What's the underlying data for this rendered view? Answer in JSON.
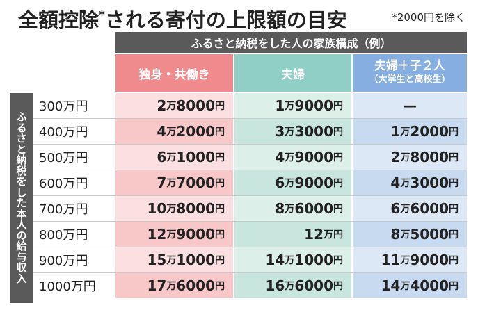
{
  "title": "全額控除",
  "title_mark": "*",
  "title_rest": "される寄付の上限額の目安",
  "note": "*2000円を除く",
  "group_header": "ふるさと納税をした人の家族構成（例）",
  "columns": [
    {
      "label": "独身・共働き",
      "sub": ""
    },
    {
      "label": "夫婦",
      "sub": ""
    },
    {
      "label": "夫婦＋子２人",
      "sub": "（大学生と高校生）"
    }
  ],
  "side_label": "ふるさと納税をした本人の給与収入",
  "rows": [
    {
      "income": "300万円",
      "cells": [
        [
          "2",
          "万",
          "8000",
          "円"
        ],
        [
          "1",
          "万",
          "9000",
          "円"
        ],
        [
          "—",
          "",
          "",
          ""
        ]
      ]
    },
    {
      "income": "400万円",
      "cells": [
        [
          "4",
          "万",
          "2000",
          "円"
        ],
        [
          "3",
          "万",
          "3000",
          "円"
        ],
        [
          "1",
          "万",
          "2000",
          "円"
        ]
      ]
    },
    {
      "income": "500万円",
      "cells": [
        [
          "6",
          "万",
          "1000",
          "円"
        ],
        [
          "4",
          "万",
          "9000",
          "円"
        ],
        [
          "2",
          "万",
          "8000",
          "円"
        ]
      ]
    },
    {
      "income": "600万円",
      "cells": [
        [
          "7",
          "万",
          "7000",
          "円"
        ],
        [
          "6",
          "万",
          "9000",
          "円"
        ],
        [
          "4",
          "万",
          "3000",
          "円"
        ]
      ]
    },
    {
      "income": "700万円",
      "cells": [
        [
          "10",
          "万",
          "8000",
          "円"
        ],
        [
          "8",
          "万",
          "6000",
          "円"
        ],
        [
          "6",
          "万",
          "6000",
          "円"
        ]
      ]
    },
    {
      "income": "800万円",
      "cells": [
        [
          "12",
          "万",
          "9000",
          "円"
        ],
        [
          "12",
          "万",
          "",
          "円"
        ],
        [
          "8",
          "万",
          "5000",
          "円"
        ]
      ]
    },
    {
      "income": "900万円",
      "cells": [
        [
          "15",
          "万",
          "1000",
          "円"
        ],
        [
          "14",
          "万",
          "1000",
          "円"
        ],
        [
          "11",
          "万",
          "9000",
          "円"
        ]
      ]
    },
    {
      "income": "1000万円",
      "cells": [
        [
          "17",
          "万",
          "6000",
          "円"
        ],
        [
          "16",
          "万",
          "6000",
          "円"
        ],
        [
          "14",
          "万",
          "4000",
          "円"
        ]
      ]
    }
  ]
}
